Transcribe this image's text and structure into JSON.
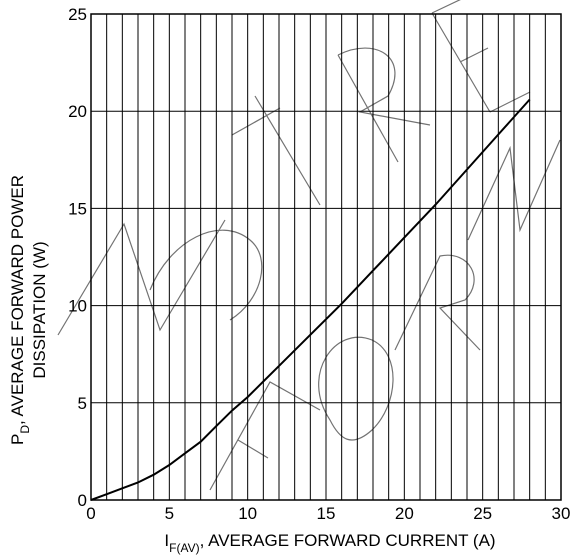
{
  "chart_data": {
    "type": "line",
    "title": "",
    "xlabel": {
      "main": "I",
      "subscript": "F(AV)",
      "rest": ", AVERAGE FORWARD CURRENT (A)"
    },
    "ylabel": {
      "line1_main": "P",
      "line1_subscript": "D",
      "line1_rest": ", AVERAGE FORWARD POWER",
      "line2": "DISSIPATION (W)"
    },
    "xlim": [
      0,
      30
    ],
    "ylim": [
      0,
      25
    ],
    "x_ticks": [
      "0",
      "5",
      "10",
      "15",
      "20",
      "25",
      "30"
    ],
    "y_ticks": [
      "0",
      "5",
      "10",
      "15",
      "20",
      "25"
    ],
    "grid": {
      "x_minor_step": 1,
      "y_major_step": 5
    },
    "series": [
      {
        "x": [
          0,
          1,
          2,
          3,
          4,
          5,
          6,
          7,
          8,
          9,
          10,
          12,
          14,
          16,
          18,
          20,
          22,
          24,
          26,
          28
        ],
        "y": [
          0,
          0.3,
          0.6,
          0.9,
          1.3,
          1.8,
          2.4,
          3.0,
          3.8,
          4.6,
          5.3,
          6.9,
          8.5,
          10.1,
          11.8,
          13.5,
          15.2,
          17.0,
          18.8,
          20.6
        ]
      }
    ],
    "colors": {
      "line": "#000000",
      "grid": "#000000",
      "background": "#ffffff"
    }
  },
  "watermark": "NOT RECOMMENDED FOR NEW DESIGN"
}
